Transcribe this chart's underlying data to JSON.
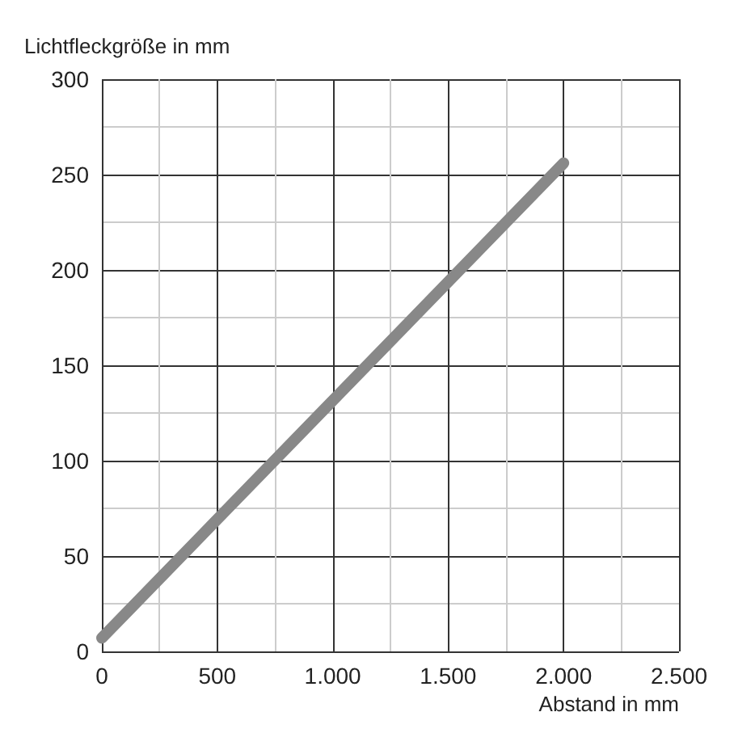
{
  "chart_data": {
    "type": "line",
    "xlabel": "Abstand in mm",
    "ylabel": "Lichtfleckgröße in mm",
    "x": [
      0,
      2000
    ],
    "series": [
      {
        "color": "#888888",
        "values": [
          7,
          256
        ]
      }
    ],
    "xlim": [
      0,
      2500
    ],
    "ylim": [
      0,
      300
    ],
    "xticks": [
      0,
      {
        "value": 250,
        "label": null
      },
      500,
      {
        "value": 750,
        "label": null
      },
      {
        "value": 1000,
        "label": "1.000"
      },
      {
        "value": 1250,
        "label": null
      },
      {
        "value": 1500,
        "label": "1.500"
      },
      {
        "value": 1750,
        "label": null
      },
      {
        "value": 2000,
        "label": "2.000"
      },
      {
        "value": 2250,
        "label": null
      },
      {
        "value": 2500,
        "label": "2.500"
      }
    ],
    "yticks": [
      0,
      {
        "value": 25,
        "label": null
      },
      50,
      {
        "value": 75,
        "label": null
      },
      100,
      {
        "value": 125,
        "label": null
      },
      150,
      {
        "value": 175,
        "label": null
      },
      200,
      {
        "value": 225,
        "label": null
      },
      250,
      {
        "value": 275,
        "label": null
      },
      300
    ],
    "grid": true,
    "line_style": "solid"
  }
}
